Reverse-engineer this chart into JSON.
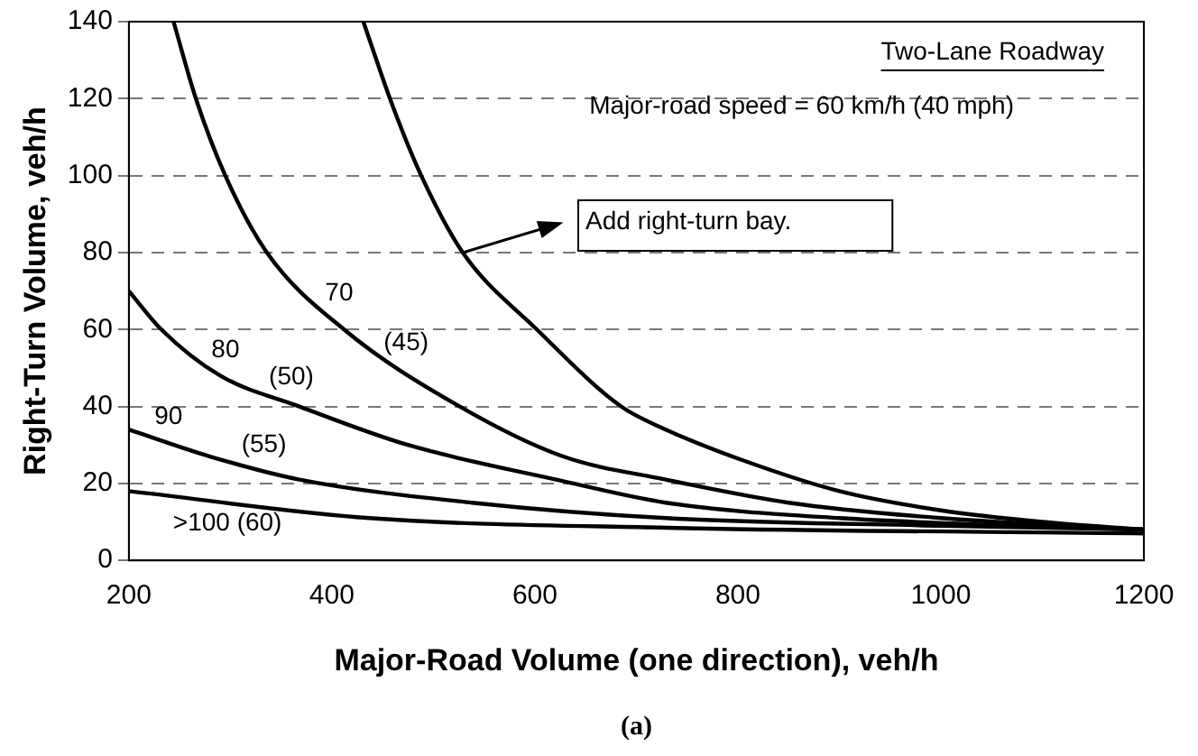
{
  "chart_data": {
    "type": "line",
    "xlabel": "Major-Road Volume (one direction), veh/h",
    "ylabel": "Right-Turn Volume, veh/h",
    "xlim": [
      200,
      1200
    ],
    "xticks": [
      200,
      400,
      600,
      800,
      1000,
      1200
    ],
    "ylim": [
      0,
      140
    ],
    "yticks": [
      0,
      20,
      40,
      60,
      80,
      100,
      120,
      140
    ],
    "grid": "y",
    "marker": "none",
    "line_style": "solid",
    "series": [
      {
        "color": "#000000",
        "x": [
          431,
          460,
          488,
          529,
          602,
          685,
          729,
          805,
          900,
          1000,
          1100,
          1200
        ],
        "values": [
          140,
          118,
          100,
          80,
          60,
          40,
          34,
          26,
          18,
          13,
          10,
          8
        ]
      },
      {
        "color": "#000000",
        "x": [
          244,
          266,
          295,
          336,
          412,
          526,
          628,
          729,
          850,
          1000,
          1200
        ],
        "values": [
          140,
          120,
          100,
          80,
          60,
          40,
          27,
          21,
          15,
          11,
          8
        ]
      },
      {
        "color": "#000000",
        "x": [
          200,
          232,
          290,
          368,
          475,
          621,
          729,
          900,
          1200
        ],
        "values": [
          70,
          60,
          48,
          40,
          30,
          21,
          15,
          11,
          8
        ]
      },
      {
        "color": "#000000",
        "x": [
          200,
          280,
          368,
          538,
          729,
          1000,
          1200
        ],
        "values": [
          34,
          27,
          21,
          15,
          11,
          9,
          8
        ]
      },
      {
        "color": "#000000",
        "x": [
          200,
          437,
          729,
          1200
        ],
        "values": [
          18,
          11,
          8.5,
          7
        ]
      }
    ],
    "annotations": [
      "Two-Lane Roadway",
      "Major-road speed = 60 km/h (40 mph)",
      "(a)",
      {
        "text": "70",
        "x": 400,
        "y": 63.2
      },
      {
        "text": "(45)",
        "x": 466,
        "y": 50.5
      },
      {
        "text": "80",
        "x": 288,
        "y": 48.4
      },
      {
        "text": "(50)",
        "x": 353,
        "y": 41.5
      },
      {
        "text": "90",
        "x": 232,
        "y": 31.2
      },
      {
        "text": "(55)",
        "x": 326,
        "y": 23.9
      },
      {
        "text": ">100 (60)",
        "x": 290,
        "y": 15.3
      },
      {
        "text": "Add right-turn bay.",
        "x": 529,
        "y": 80
      }
    ]
  }
}
